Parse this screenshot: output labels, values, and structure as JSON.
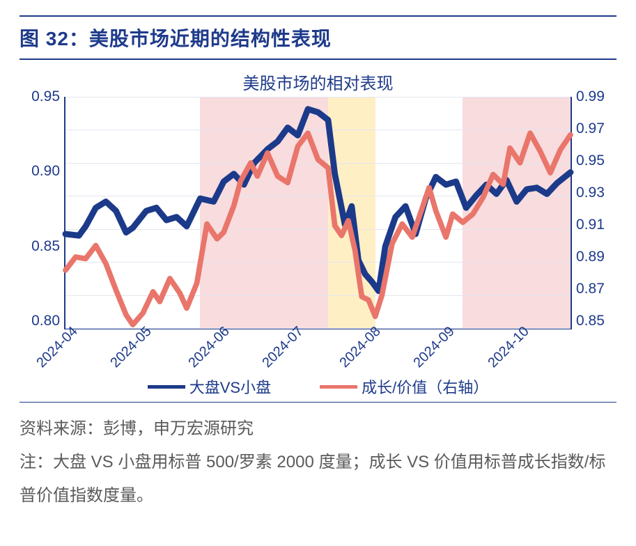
{
  "figure_header": "图 32：美股市场近期的结构性表现",
  "chart": {
    "type": "dual-axis-line",
    "title": "美股市场的相对表现",
    "colors": {
      "axis": "#1e3a8a",
      "text": "#1e3a8a",
      "grid": "#e2e6ef",
      "series1": "#1c3a8a",
      "series2": "#e9756b",
      "shade_pink": "rgba(243,192,195,0.55)",
      "shade_yellow": "rgba(255,225,150,0.55)",
      "background": "#ffffff",
      "footer_text": "#5a5a5a"
    },
    "font_sizes": {
      "title": 24,
      "tick": 21,
      "legend": 22,
      "header": 28,
      "footer": 24
    },
    "left_axis": {
      "min": 0.8,
      "max": 0.95,
      "ticks": [
        0.95,
        0.9,
        0.85,
        0.8
      ],
      "labels": [
        "0.95",
        "0.90",
        "0.85",
        "0.80"
      ]
    },
    "right_axis": {
      "min": 0.85,
      "max": 0.99,
      "ticks": [
        0.99,
        0.97,
        0.95,
        0.93,
        0.91,
        0.89,
        0.87,
        0.85
      ],
      "labels": [
        "0.99",
        "0.97",
        "0.95",
        "0.93",
        "0.91",
        "0.89",
        "0.87",
        "0.85"
      ]
    },
    "x_axis": {
      "domain_index": [
        0,
        150
      ],
      "ticks_index": [
        0,
        22,
        45,
        67,
        90,
        112,
        134
      ],
      "labels": [
        "2024-04",
        "2024-05",
        "2024-06",
        "2024-07",
        "2024-08",
        "2024-09",
        "2024-10"
      ]
    },
    "shaded_regions": [
      {
        "start": 40,
        "end": 78,
        "color": "shade_pink"
      },
      {
        "start": 78,
        "end": 92,
        "color": "shade_yellow"
      },
      {
        "start": 118,
        "end": 150,
        "color": "shade_pink"
      }
    ],
    "series": [
      {
        "name": "大盘VS小盘",
        "axis": "left",
        "line_width": 4,
        "data": [
          [
            0,
            0.861
          ],
          [
            4,
            0.86
          ],
          [
            6,
            0.866
          ],
          [
            9,
            0.878
          ],
          [
            12,
            0.882
          ],
          [
            15,
            0.876
          ],
          [
            18,
            0.862
          ],
          [
            20,
            0.865
          ],
          [
            24,
            0.876
          ],
          [
            27,
            0.878
          ],
          [
            30,
            0.87
          ],
          [
            33,
            0.872
          ],
          [
            36,
            0.866
          ],
          [
            40,
            0.884
          ],
          [
            44,
            0.882
          ],
          [
            47,
            0.895
          ],
          [
            50,
            0.9
          ],
          [
            53,
            0.893
          ],
          [
            56,
            0.907
          ],
          [
            60,
            0.916
          ],
          [
            63,
            0.921
          ],
          [
            66,
            0.93
          ],
          [
            69,
            0.925
          ],
          [
            72,
            0.942
          ],
          [
            75,
            0.94
          ],
          [
            78,
            0.935
          ],
          [
            80,
            0.9
          ],
          [
            83,
            0.867
          ],
          [
            85,
            0.879
          ],
          [
            87,
            0.844
          ],
          [
            89,
            0.835
          ],
          [
            91,
            0.83
          ],
          [
            93,
            0.824
          ],
          [
            95,
            0.853
          ],
          [
            98,
            0.872
          ],
          [
            101,
            0.879
          ],
          [
            104,
            0.861
          ],
          [
            107,
            0.884
          ],
          [
            110,
            0.898
          ],
          [
            113,
            0.893
          ],
          [
            116,
            0.895
          ],
          [
            119,
            0.878
          ],
          [
            122,
            0.886
          ],
          [
            125,
            0.893
          ],
          [
            128,
            0.887
          ],
          [
            131,
            0.896
          ],
          [
            134,
            0.882
          ],
          [
            137,
            0.89
          ],
          [
            140,
            0.891
          ],
          [
            143,
            0.887
          ],
          [
            146,
            0.894
          ],
          [
            150,
            0.901
          ]
        ]
      },
      {
        "name": "成长/价值（右轴）",
        "axis": "right",
        "line_width": 3.5,
        "data": [
          [
            0,
            0.885
          ],
          [
            3,
            0.893
          ],
          [
            6,
            0.892
          ],
          [
            9,
            0.9
          ],
          [
            12,
            0.889
          ],
          [
            15,
            0.873
          ],
          [
            18,
            0.858
          ],
          [
            20,
            0.852
          ],
          [
            23,
            0.859
          ],
          [
            26,
            0.872
          ],
          [
            28,
            0.866
          ],
          [
            31,
            0.88
          ],
          [
            34,
            0.871
          ],
          [
            36,
            0.862
          ],
          [
            39,
            0.877
          ],
          [
            42,
            0.913
          ],
          [
            45,
            0.904
          ],
          [
            47,
            0.908
          ],
          [
            50,
            0.924
          ],
          [
            52,
            0.939
          ],
          [
            55,
            0.95
          ],
          [
            57,
            0.942
          ],
          [
            60,
            0.956
          ],
          [
            63,
            0.942
          ],
          [
            66,
            0.938
          ],
          [
            69,
            0.96
          ],
          [
            72,
            0.968
          ],
          [
            75,
            0.952
          ],
          [
            78,
            0.947
          ],
          [
            80,
            0.912
          ],
          [
            82,
            0.906
          ],
          [
            84,
            0.915
          ],
          [
            86,
            0.897
          ],
          [
            88,
            0.869
          ],
          [
            90,
            0.867
          ],
          [
            92,
            0.857
          ],
          [
            94,
            0.87
          ],
          [
            97,
            0.901
          ],
          [
            100,
            0.913
          ],
          [
            103,
            0.905
          ],
          [
            106,
            0.923
          ],
          [
            108,
            0.935
          ],
          [
            110,
            0.921
          ],
          [
            113,
            0.905
          ],
          [
            115,
            0.919
          ],
          [
            118,
            0.914
          ],
          [
            121,
            0.919
          ],
          [
            124,
            0.929
          ],
          [
            127,
            0.943
          ],
          [
            130,
            0.937
          ],
          [
            132,
            0.959
          ],
          [
            135,
            0.95
          ],
          [
            138,
            0.968
          ],
          [
            141,
            0.957
          ],
          [
            144,
            0.944
          ],
          [
            147,
            0.958
          ],
          [
            150,
            0.967
          ]
        ]
      }
    ],
    "legend": [
      {
        "label": "大盘VS小盘",
        "color_key": "series1"
      },
      {
        "label": "成长/价值（右轴）",
        "color_key": "series2"
      }
    ]
  },
  "footer": {
    "source": "资料来源：彭博，申万宏源研究",
    "note": "注：大盘 VS 小盘用标普 500/罗素 2000 度量；成长 VS 价值用标普成长指数/标普价值指数度量。"
  }
}
